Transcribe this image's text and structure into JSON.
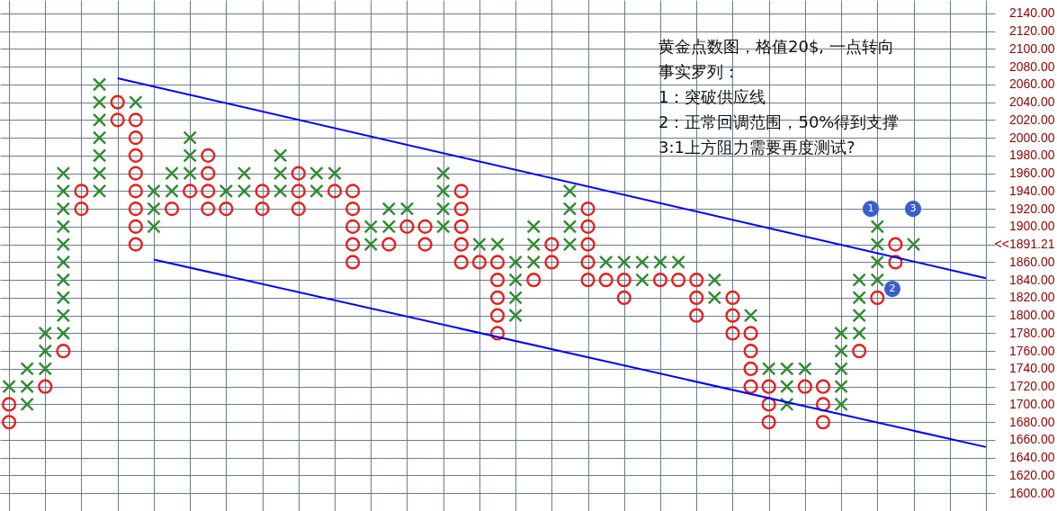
{
  "chart_data": {
    "type": "scatter",
    "categories": [
      null,
      null,
      null,
      null,
      null,
      null,
      null,
      null,
      null,
      null,
      null,
      null,
      null,
      null,
      null,
      null,
      null,
      null,
      null,
      null,
      null,
      null,
      null,
      null,
      null,
      null,
      null,
      null,
      null,
      null,
      null,
      null,
      null,
      null,
      null,
      null,
      null,
      null,
      null,
      null,
      null,
      null,
      null,
      null,
      null,
      null,
      null,
      null,
      null,
      null,
      null,
      null,
      null,
      null,
      null
    ],
    "ylim": [
      1580,
      2155
    ],
    "yticks": [
      {
        "value": 1600,
        "label": "1600.00"
      },
      {
        "value": 1620,
        "label": "1620.00"
      },
      {
        "value": 1640,
        "label": "1640.00"
      },
      {
        "value": 1660,
        "label": "1660.00"
      },
      {
        "value": 1680,
        "label": "1680.00"
      },
      {
        "value": 1700,
        "label": "1700.00"
      },
      {
        "value": 1720,
        "label": "1720.00"
      },
      {
        "value": 1740,
        "label": "1740.00"
      },
      {
        "value": 1760,
        "label": "1760.00"
      },
      {
        "value": 1780,
        "label": "1780.00"
      },
      {
        "value": 1800,
        "label": "1800.00"
      },
      {
        "value": 1820,
        "label": "1820.00"
      },
      {
        "value": 1840,
        "label": "1840.00"
      },
      {
        "value": 1860,
        "label": "1860.00"
      },
      {
        "value": 1880,
        "label": "<<1891.21"
      },
      {
        "value": 1900,
        "label": "1900.00"
      },
      {
        "value": 1920,
        "label": "1920.00"
      },
      {
        "value": 1940,
        "label": "1940.00"
      },
      {
        "value": 1960,
        "label": "1960.00"
      },
      {
        "value": 1980,
        "label": "1980.00"
      },
      {
        "value": 2000,
        "label": "2000.00"
      },
      {
        "value": 2020,
        "label": "2020.00"
      },
      {
        "value": 2040,
        "label": "2040.00"
      },
      {
        "value": 2060,
        "label": "2060.00"
      },
      {
        "value": 2080,
        "label": "2080.00"
      },
      {
        "value": 2100,
        "label": "2100.00"
      },
      {
        "value": 2120,
        "label": "2120.00"
      },
      {
        "value": 2140,
        "label": "2140.00"
      }
    ],
    "tick_labels": "y",
    "grid": true,
    "series": [
      {
        "type": "scatter",
        "marker": "cross",
        "color": "#2e8b2e",
        "values": [
          1720,
          1740,
          1780,
          1960,
          null,
          2060,
          null,
          2040,
          1940,
          1960,
          2000,
          null,
          1940,
          1960,
          null,
          1980,
          null,
          1960,
          1960,
          null,
          1900,
          1920,
          1920,
          null,
          1960,
          null,
          1880,
          1880,
          1860,
          1900,
          null,
          1940,
          null,
          1860,
          1860,
          1860,
          1860,
          1860,
          null,
          1840,
          null,
          1800,
          1740,
          1740,
          1740,
          null,
          1780,
          1840,
          1900,
          null,
          1880,
          null,
          null,
          null,
          null
        ]
      },
      {
        "type": "scatter",
        "marker": "cross",
        "color": "#2e8b2e",
        "values": [
          null,
          1720,
          1760,
          1940,
          null,
          2040,
          null,
          null,
          1920,
          1940,
          1980,
          null,
          null,
          1940,
          null,
          1960,
          null,
          1940,
          null,
          null,
          1880,
          1900,
          null,
          null,
          1940,
          null,
          null,
          null,
          1840,
          1880,
          null,
          1920,
          null,
          null,
          null,
          1840,
          null,
          null,
          null,
          1820,
          null,
          null,
          null,
          1720,
          null,
          null,
          1760,
          1820,
          1880,
          null,
          null,
          null,
          null,
          null,
          null
        ]
      },
      {
        "type": "scatter",
        "marker": "cross",
        "color": "#2e8b2e",
        "values": [
          null,
          1700,
          1740,
          1920,
          null,
          2020,
          null,
          null,
          1900,
          null,
          1960,
          null,
          null,
          null,
          null,
          1940,
          null,
          null,
          null,
          null,
          null,
          null,
          null,
          null,
          1920,
          null,
          null,
          null,
          1820,
          1860,
          null,
          1900,
          null,
          null,
          null,
          null,
          null,
          null,
          null,
          null,
          null,
          null,
          null,
          1700,
          null,
          null,
          1740,
          1800,
          1860,
          null,
          null,
          null,
          null,
          null,
          null
        ]
      },
      {
        "type": "scatter",
        "marker": "cross",
        "color": "#2e8b2e",
        "values": [
          null,
          null,
          null,
          1900,
          null,
          2000,
          null,
          null,
          null,
          null,
          null,
          null,
          null,
          null,
          null,
          null,
          null,
          null,
          null,
          null,
          null,
          null,
          null,
          null,
          1900,
          null,
          null,
          null,
          1800,
          null,
          null,
          1880,
          null,
          null,
          null,
          null,
          null,
          null,
          null,
          null,
          null,
          null,
          null,
          null,
          null,
          null,
          1720,
          1780,
          1840,
          null,
          null,
          null,
          null,
          null,
          null
        ]
      },
      {
        "type": "scatter",
        "marker": "cross",
        "color": "#2e8b2e",
        "values": [
          null,
          null,
          null,
          1880,
          null,
          1980,
          null,
          null,
          null,
          null,
          null,
          null,
          null,
          null,
          null,
          null,
          null,
          null,
          null,
          null,
          null,
          null,
          null,
          null,
          null,
          null,
          null,
          null,
          null,
          null,
          null,
          null,
          null,
          null,
          null,
          null,
          null,
          null,
          null,
          null,
          null,
          null,
          null,
          null,
          null,
          null,
          1700,
          null,
          null,
          null,
          null,
          null,
          null,
          null,
          null
        ]
      },
      {
        "type": "scatter",
        "marker": "cross",
        "color": "#2e8b2e",
        "values": [
          null,
          null,
          null,
          1860,
          null,
          1960,
          null,
          null,
          null,
          null,
          null,
          null,
          null,
          null,
          null,
          null,
          null,
          null,
          null,
          null,
          null,
          null,
          null,
          null,
          null,
          null,
          null,
          null,
          null,
          null,
          null,
          null,
          null,
          null,
          null,
          null,
          null,
          null,
          null,
          null,
          null,
          null,
          null,
          null,
          null,
          null,
          null,
          null,
          null,
          null,
          null,
          null,
          null,
          null,
          null
        ]
      },
      {
        "type": "scatter",
        "marker": "cross",
        "color": "#2e8b2e",
        "values": [
          null,
          null,
          null,
          1840,
          null,
          1940,
          null,
          null,
          null,
          null,
          null,
          null,
          null,
          null,
          null,
          null,
          null,
          null,
          null,
          null,
          null,
          null,
          null,
          null,
          null,
          null,
          null,
          null,
          null,
          null,
          null,
          null,
          null,
          null,
          null,
          null,
          null,
          null,
          null,
          null,
          null,
          null,
          null,
          null,
          null,
          null,
          null,
          null,
          null,
          null,
          null,
          null,
          null,
          null,
          null
        ]
      },
      {
        "type": "scatter",
        "marker": "cross",
        "color": "#2e8b2e",
        "values": [
          null,
          null,
          null,
          1820,
          null,
          null,
          null,
          null,
          null,
          null,
          null,
          null,
          null,
          null,
          null,
          null,
          null,
          null,
          null,
          null,
          null,
          null,
          null,
          null,
          null,
          null,
          null,
          null,
          null,
          null,
          null,
          null,
          null,
          null,
          null,
          null,
          null,
          null,
          null,
          null,
          null,
          null,
          null,
          null,
          null,
          null,
          null,
          null,
          null,
          null,
          null,
          null,
          null,
          null,
          null
        ]
      },
      {
        "type": "scatter",
        "marker": "cross",
        "color": "#2e8b2e",
        "values": [
          null,
          null,
          null,
          1800,
          null,
          null,
          null,
          null,
          null,
          null,
          null,
          null,
          null,
          null,
          null,
          null,
          null,
          null,
          null,
          null,
          null,
          null,
          null,
          null,
          null,
          null,
          null,
          null,
          null,
          null,
          null,
          null,
          null,
          null,
          null,
          null,
          null,
          null,
          null,
          null,
          null,
          null,
          null,
          null,
          null,
          null,
          null,
          null,
          null,
          null,
          null,
          null,
          null,
          null,
          null
        ]
      },
      {
        "type": "scatter",
        "marker": "cross",
        "color": "#2e8b2e",
        "values": [
          null,
          null,
          null,
          1780,
          null,
          null,
          null,
          null,
          null,
          null,
          null,
          null,
          null,
          null,
          null,
          null,
          null,
          null,
          null,
          null,
          null,
          null,
          null,
          null,
          null,
          null,
          null,
          null,
          null,
          null,
          null,
          null,
          null,
          null,
          null,
          null,
          null,
          null,
          null,
          null,
          null,
          null,
          null,
          null,
          null,
          null,
          null,
          null,
          null,
          null,
          null,
          null,
          null,
          null,
          null
        ]
      },
      {
        "type": "scatter",
        "marker": "circle",
        "color": "#e3201e",
        "values": [
          1700,
          null,
          1720,
          1760,
          1940,
          null,
          2040,
          2020,
          null,
          1920,
          1940,
          1980,
          1920,
          null,
          1940,
          null,
          1960,
          null,
          1940,
          1940,
          null,
          1880,
          1900,
          1900,
          null,
          1940,
          1860,
          1860,
          null,
          1840,
          1880,
          null,
          1920,
          1840,
          1840,
          null,
          1840,
          1840,
          1840,
          null,
          1820,
          1780,
          1720,
          null,
          1720,
          1720,
          null,
          1760,
          1820,
          1880,
          null,
          null,
          null,
          null,
          null
        ]
      },
      {
        "type": "scatter",
        "marker": "circle",
        "color": "#e3201e",
        "values": [
          1680,
          null,
          null,
          null,
          1920,
          null,
          2020,
          2000,
          null,
          null,
          null,
          1960,
          null,
          null,
          1920,
          null,
          1940,
          null,
          null,
          1920,
          null,
          null,
          null,
          1880,
          null,
          1920,
          null,
          1840,
          null,
          null,
          1860,
          null,
          1900,
          null,
          1820,
          null,
          null,
          null,
          1820,
          null,
          1800,
          1760,
          1700,
          null,
          null,
          1700,
          null,
          null,
          null,
          1860,
          null,
          null,
          null,
          null,
          null
        ]
      },
      {
        "type": "scatter",
        "marker": "circle",
        "color": "#e3201e",
        "values": [
          null,
          null,
          null,
          null,
          null,
          null,
          null,
          1980,
          null,
          null,
          null,
          1940,
          null,
          null,
          null,
          null,
          1920,
          null,
          null,
          1900,
          null,
          null,
          null,
          null,
          null,
          1900,
          null,
          1820,
          null,
          null,
          null,
          null,
          1880,
          null,
          null,
          null,
          null,
          null,
          1800,
          null,
          1780,
          1740,
          1680,
          null,
          null,
          1680,
          null,
          null,
          null,
          null,
          null,
          null,
          null,
          null,
          null
        ]
      },
      {
        "type": "scatter",
        "marker": "circle",
        "color": "#e3201e",
        "values": [
          null,
          null,
          null,
          null,
          null,
          null,
          null,
          1960,
          null,
          null,
          null,
          1920,
          null,
          null,
          null,
          null,
          null,
          null,
          null,
          1880,
          null,
          null,
          null,
          null,
          null,
          1880,
          null,
          1800,
          null,
          null,
          null,
          null,
          1860,
          null,
          null,
          null,
          null,
          null,
          null,
          null,
          null,
          1720,
          null,
          null,
          null,
          null,
          null,
          null,
          null,
          null,
          null,
          null,
          null,
          null,
          null
        ]
      },
      {
        "type": "scatter",
        "marker": "circle",
        "color": "#e3201e",
        "values": [
          null,
          null,
          null,
          null,
          null,
          null,
          null,
          1940,
          null,
          null,
          null,
          null,
          null,
          null,
          null,
          null,
          null,
          null,
          null,
          1860,
          null,
          null,
          null,
          null,
          null,
          1860,
          null,
          1780,
          null,
          null,
          null,
          null,
          1840,
          null,
          null,
          null,
          null,
          null,
          null,
          null,
          null,
          null,
          null,
          null,
          null,
          null,
          null,
          null,
          null,
          null,
          null,
          null,
          null,
          null,
          null
        ]
      },
      {
        "type": "scatter",
        "marker": "circle",
        "color": "#e3201e",
        "values": [
          null,
          null,
          null,
          null,
          null,
          null,
          null,
          1920,
          null,
          null,
          null,
          null,
          null,
          null,
          null,
          null,
          null,
          null,
          null,
          null,
          null,
          null,
          null,
          null,
          null,
          null,
          null,
          null,
          null,
          null,
          null,
          null,
          null,
          null,
          null,
          null,
          null,
          null,
          null,
          null,
          null,
          null,
          null,
          null,
          null,
          null,
          null,
          null,
          null,
          null,
          null,
          null,
          null,
          null,
          null
        ]
      },
      {
        "type": "scatter",
        "marker": "circle",
        "color": "#e3201e",
        "values": [
          null,
          null,
          null,
          null,
          null,
          null,
          null,
          1900,
          null,
          null,
          null,
          null,
          null,
          null,
          null,
          null,
          null,
          null,
          null,
          null,
          null,
          null,
          null,
          null,
          null,
          null,
          null,
          null,
          null,
          null,
          null,
          null,
          null,
          null,
          null,
          null,
          null,
          null,
          null,
          null,
          null,
          null,
          null,
          null,
          null,
          null,
          null,
          null,
          null,
          null,
          null,
          null,
          null,
          null,
          null
        ]
      },
      {
        "type": "scatter",
        "marker": "circle",
        "color": "#e3201e",
        "values": [
          null,
          null,
          null,
          null,
          null,
          null,
          null,
          1880,
          null,
          null,
          null,
          null,
          null,
          null,
          null,
          null,
          null,
          null,
          null,
          null,
          null,
          null,
          null,
          null,
          null,
          null,
          null,
          null,
          null,
          null,
          null,
          null,
          null,
          null,
          null,
          null,
          null,
          null,
          null,
          null,
          null,
          null,
          null,
          null,
          null,
          null,
          null,
          null,
          null,
          null,
          null,
          null,
          null,
          null,
          null
        ]
      },
      {
        "type": "line",
        "color": "#0000ff",
        "values": [
          null,
          null,
          null,
          null,
          null,
          null,
          2067,
          null,
          null,
          null,
          null,
          null,
          null,
          null,
          null,
          null,
          null,
          null,
          null,
          null,
          null,
          null,
          null,
          null,
          null,
          null,
          null,
          null,
          null,
          null,
          null,
          null,
          null,
          null,
          null,
          null,
          null,
          null,
          null,
          null,
          null,
          null,
          null,
          null,
          null,
          null,
          null,
          null,
          null,
          null,
          null,
          null,
          null,
          null,
          1842
        ]
      },
      {
        "type": "line",
        "color": "#0000ff",
        "values": [
          null,
          null,
          null,
          null,
          null,
          null,
          null,
          null,
          1863,
          null,
          null,
          null,
          null,
          null,
          null,
          null,
          null,
          null,
          null,
          null,
          null,
          null,
          null,
          null,
          null,
          null,
          null,
          null,
          null,
          null,
          null,
          null,
          null,
          null,
          null,
          null,
          null,
          null,
          null,
          null,
          null,
          null,
          null,
          null,
          null,
          null,
          null,
          null,
          null,
          null,
          null,
          null,
          null,
          null,
          1652
        ]
      }
    ],
    "annotations": [
      "黄金点数图，格值20$, 一点转向",
      "事实罗列：",
      "1：突破供应线",
      "2：正常回调范围，50%得到支撑",
      "3:1上方阻力需要再度测试?",
      {
        "text": "1",
        "y": 1920
      },
      {
        "text": "2",
        "y": 1830
      },
      {
        "text": "3",
        "y": 1920
      }
    ]
  }
}
